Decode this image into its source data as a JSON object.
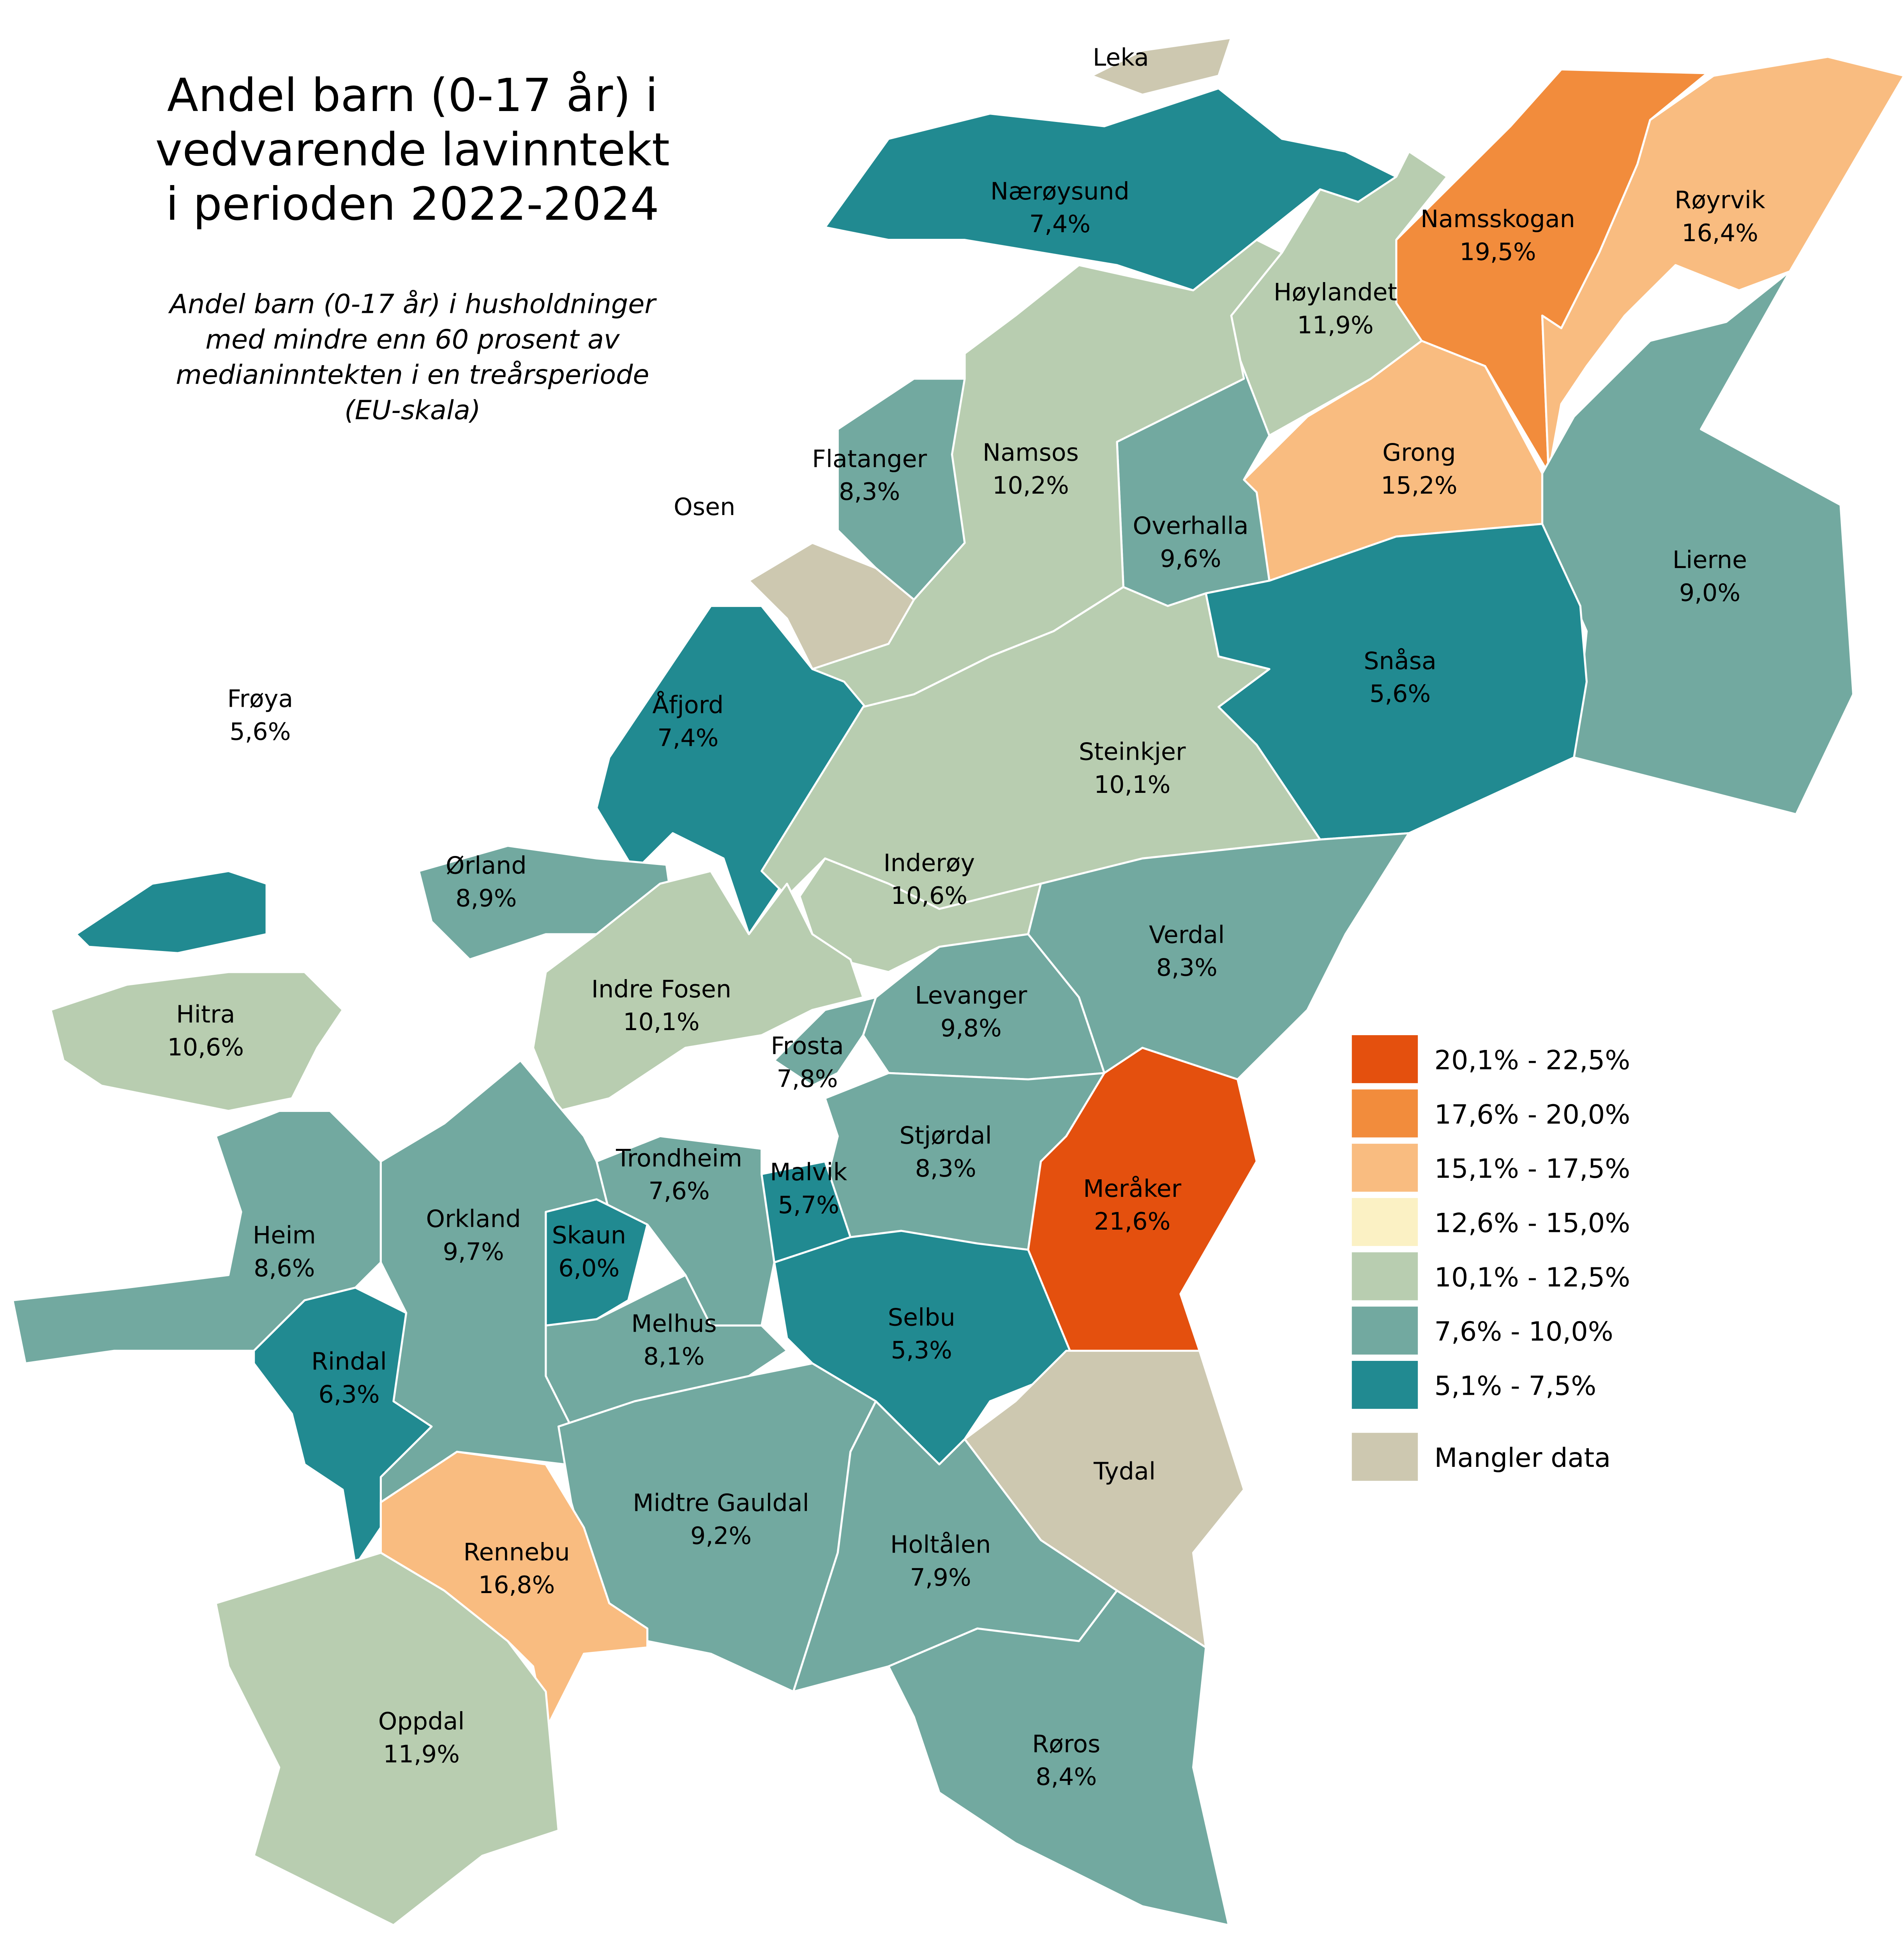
{
  "title_lines": [
    "Andel barn (0-17 år) i",
    "vedvarende lavinntekt",
    "i perioden 2022-2024"
  ],
  "subtitle_lines": [
    "Andel barn (0-17 år) i husholdninger",
    "med mindre enn 60 prosent av",
    "medianinntekten i en treårsperiode",
    "(EU-skala)"
  ],
  "legend": [
    {
      "label": "20,1% - 22,5%",
      "color": "#E4500E"
    },
    {
      "label": "17,6% - 20,0%",
      "color": "#F28C3C"
    },
    {
      "label": "15,1% - 17,5%",
      "color": "#F9BC80"
    },
    {
      "label": "12,6% - 15,0%",
      "color": "#FBF1C4"
    },
    {
      "label": "10,1% - 12,5%",
      "color": "#B8CDB0"
    },
    {
      "label": "7,6% - 10,0%",
      "color": "#72A9A0"
    },
    {
      "label": "5,1% - 7,5%",
      "color": "#218A91"
    },
    {
      "label": "Mangler data",
      "color": "#CDC8B0"
    }
  ],
  "municipalities": [
    {
      "name": "Leka",
      "value": "",
      "class": 7
    },
    {
      "name": "Nærøysund",
      "value": "7,4%",
      "class": 6
    },
    {
      "name": "Namsskogan",
      "value": "19,5%",
      "class": 1
    },
    {
      "name": "Røyrvik",
      "value": "16,4%",
      "class": 2
    },
    {
      "name": "Høylandet",
      "value": "11,9%",
      "class": 4
    },
    {
      "name": "Lierne",
      "value": "9,0%",
      "class": 5
    },
    {
      "name": "Grong",
      "value": "15,2%",
      "class": 2
    },
    {
      "name": "Overhalla",
      "value": "9,6%",
      "class": 5
    },
    {
      "name": "Namsos",
      "value": "10,2%",
      "class": 4
    },
    {
      "name": "Flatanger",
      "value": "8,3%",
      "class": 5
    },
    {
      "name": "Osen",
      "value": "",
      "class": 7
    },
    {
      "name": "Åfjord",
      "value": "7,4%",
      "class": 6
    },
    {
      "name": "Snåsa",
      "value": "5,6%",
      "class": 6
    },
    {
      "name": "Steinkjer",
      "value": "10,1%",
      "class": 4
    },
    {
      "name": "Frøya",
      "value": "5,6%",
      "class": 6
    },
    {
      "name": "Ørland",
      "value": "8,9%",
      "class": 5
    },
    {
      "name": "Inderøy",
      "value": "10,6%",
      "class": 4
    },
    {
      "name": "Verdal",
      "value": "8,3%",
      "class": 5
    },
    {
      "name": "Indre Fosen",
      "value": "10,1%",
      "class": 4
    },
    {
      "name": "Levanger",
      "value": "9,8%",
      "class": 5
    },
    {
      "name": "Hitra",
      "value": "10,6%",
      "class": 4
    },
    {
      "name": "Frosta",
      "value": "7,8%",
      "class": 5
    },
    {
      "name": "Stjørdal",
      "value": "8,3%",
      "class": 5
    },
    {
      "name": "Trondheim",
      "value": "7,6%",
      "class": 5
    },
    {
      "name": "Malvik",
      "value": "5,7%",
      "class": 6
    },
    {
      "name": "Meråker",
      "value": "21,6%",
      "class": 0
    },
    {
      "name": "Heim",
      "value": "8,6%",
      "class": 5
    },
    {
      "name": "Orkland",
      "value": "9,7%",
      "class": 5
    },
    {
      "name": "Skaun",
      "value": "6,0%",
      "class": 6
    },
    {
      "name": "Melhus",
      "value": "8,1%",
      "class": 5
    },
    {
      "name": "Selbu",
      "value": "5,3%",
      "class": 6
    },
    {
      "name": "Rindal",
      "value": "6,3%",
      "class": 6
    },
    {
      "name": "Tydal",
      "value": "",
      "class": 7
    },
    {
      "name": "Midtre Gauldal",
      "value": "9,2%",
      "class": 5
    },
    {
      "name": "Rennebu",
      "value": "16,8%",
      "class": 2
    },
    {
      "name": "Holtålen",
      "value": "7,9%",
      "class": 5
    },
    {
      "name": "Oppdal",
      "value": "11,9%",
      "class": 4
    },
    {
      "name": "Røros",
      "value": "8,4%",
      "class": 5
    }
  ]
}
